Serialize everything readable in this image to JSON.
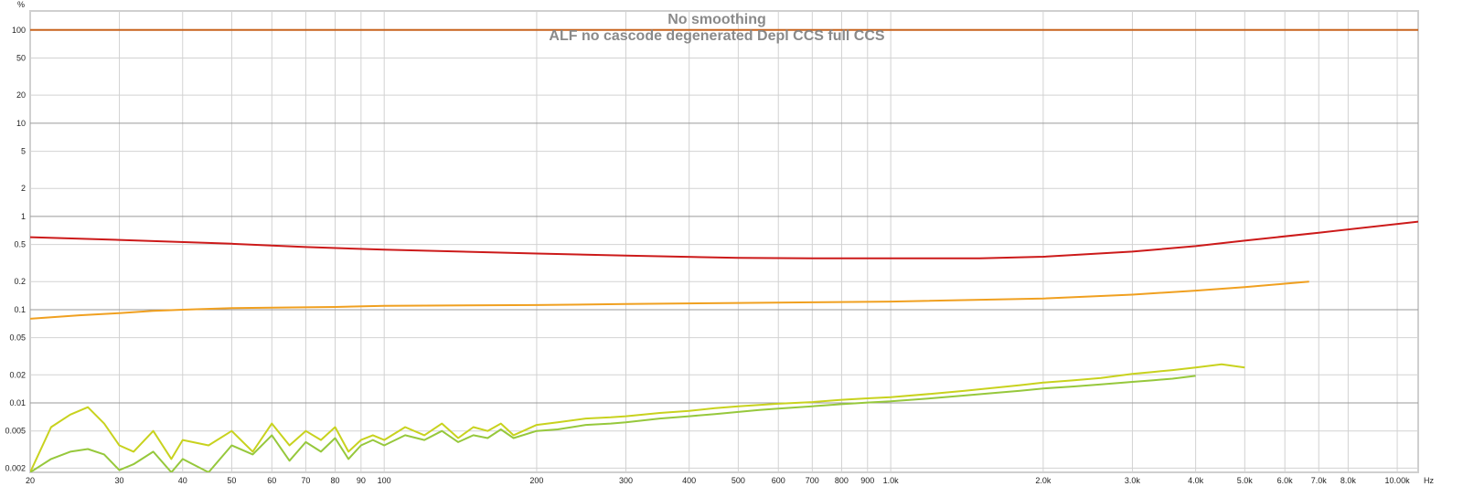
{
  "chart_data": {
    "type": "line",
    "title": "No smoothing",
    "subtitle": "ALF no cascode degenerated Depl CCS full CCS",
    "xlabel": "Hz",
    "ylabel": "%",
    "xscale": "log",
    "yscale": "log",
    "xlim": [
      20,
      11000
    ],
    "ylim": [
      0.0018,
      160
    ],
    "grid": true,
    "x_ticks": [
      {
        "value": 20,
        "label": "20"
      },
      {
        "value": 30,
        "label": "30"
      },
      {
        "value": 40,
        "label": "40"
      },
      {
        "value": 50,
        "label": "50"
      },
      {
        "value": 60,
        "label": "60"
      },
      {
        "value": 70,
        "label": "70"
      },
      {
        "value": 80,
        "label": "80"
      },
      {
        "value": 90,
        "label": "90"
      },
      {
        "value": 100,
        "label": "100"
      },
      {
        "value": 200,
        "label": "200"
      },
      {
        "value": 300,
        "label": "300"
      },
      {
        "value": 400,
        "label": "400"
      },
      {
        "value": 500,
        "label": "500"
      },
      {
        "value": 600,
        "label": "600"
      },
      {
        "value": 700,
        "label": "700"
      },
      {
        "value": 800,
        "label": "800"
      },
      {
        "value": 900,
        "label": "900"
      },
      {
        "value": 1000,
        "label": "1.0k"
      },
      {
        "value": 2000,
        "label": "2.0k"
      },
      {
        "value": 3000,
        "label": "3.0k"
      },
      {
        "value": 4000,
        "label": "4.0k"
      },
      {
        "value": 5000,
        "label": "5.0k"
      },
      {
        "value": 6000,
        "label": "6.0k"
      },
      {
        "value": 7000,
        "label": "7.0k"
      },
      {
        "value": 8000,
        "label": "8.0k"
      },
      {
        "value": 10000,
        "label": "10.00k"
      }
    ],
    "y_ticks": [
      {
        "value": 100,
        "label": "100"
      },
      {
        "value": 50,
        "label": "50"
      },
      {
        "value": 20,
        "label": "20"
      },
      {
        "value": 10,
        "label": "10"
      },
      {
        "value": 5,
        "label": "5"
      },
      {
        "value": 2,
        "label": "2"
      },
      {
        "value": 1,
        "label": "1"
      },
      {
        "value": 0.5,
        "label": "0.5"
      },
      {
        "value": 0.2,
        "label": "0.2"
      },
      {
        "value": 0.1,
        "label": "0.1"
      },
      {
        "value": 0.05,
        "label": "0.05"
      },
      {
        "value": 0.02,
        "label": "0.02"
      },
      {
        "value": 0.01,
        "label": "0.01"
      },
      {
        "value": 0.005,
        "label": "0.005"
      },
      {
        "value": 0.002,
        "label": "0.002"
      }
    ],
    "major_y": [
      100,
      10,
      1,
      0.1,
      0.01
    ],
    "series": [
      {
        "color": "#c8641e",
        "x": [
          20,
          11000
        ],
        "y": [
          100,
          100
        ]
      },
      {
        "color": "#cc1a1a",
        "x": [
          20,
          30,
          50,
          70,
          100,
          200,
          300,
          500,
          700,
          1000,
          1500,
          2000,
          3000,
          4000,
          5000,
          7000,
          11000
        ],
        "y": [
          0.6,
          0.56,
          0.51,
          0.47,
          0.44,
          0.4,
          0.38,
          0.36,
          0.355,
          0.355,
          0.355,
          0.37,
          0.42,
          0.48,
          0.55,
          0.67,
          0.88
        ]
      },
      {
        "color": "#f0a020",
        "x": [
          20,
          25,
          30,
          35,
          40,
          50,
          60,
          80,
          100,
          200,
          300,
          500,
          700,
          1000,
          2000,
          3000,
          4000,
          5000,
          6000,
          6700
        ],
        "y": [
          0.08,
          0.087,
          0.092,
          0.097,
          0.1,
          0.104,
          0.105,
          0.107,
          0.11,
          0.112,
          0.115,
          0.118,
          0.12,
          0.122,
          0.132,
          0.145,
          0.16,
          0.175,
          0.19,
          0.2
        ]
      },
      {
        "color": "#c8d21e",
        "x": [
          20,
          22,
          24,
          26,
          28,
          30,
          32,
          35,
          38,
          40,
          45,
          50,
          55,
          60,
          65,
          70,
          75,
          80,
          85,
          90,
          95,
          100,
          110,
          120,
          130,
          140,
          150,
          160,
          170,
          180,
          200,
          220,
          250,
          280,
          300,
          350,
          400,
          450,
          500,
          550,
          600,
          700,
          800,
          900,
          1000,
          1200,
          1400,
          1600,
          1800,
          2000,
          2300,
          2600,
          3000,
          3300,
          3600,
          4000,
          4500,
          5000
        ],
        "y": [
          0.0018,
          0.0055,
          0.0075,
          0.009,
          0.006,
          0.0035,
          0.003,
          0.005,
          0.0025,
          0.004,
          0.0035,
          0.005,
          0.003,
          0.006,
          0.0035,
          0.005,
          0.004,
          0.0055,
          0.003,
          0.004,
          0.0045,
          0.004,
          0.0055,
          0.0045,
          0.006,
          0.0042,
          0.0055,
          0.005,
          0.006,
          0.0045,
          0.0058,
          0.0062,
          0.0068,
          0.007,
          0.0072,
          0.0078,
          0.0082,
          0.0088,
          0.0092,
          0.0095,
          0.0098,
          0.0102,
          0.0108,
          0.0112,
          0.0115,
          0.0125,
          0.0135,
          0.0145,
          0.0155,
          0.0165,
          0.0175,
          0.0185,
          0.0205,
          0.0215,
          0.0225,
          0.024,
          0.026,
          0.024
        ]
      },
      {
        "color": "#96c83c",
        "x": [
          20,
          22,
          24,
          26,
          28,
          30,
          32,
          35,
          38,
          40,
          45,
          50,
          55,
          60,
          65,
          70,
          75,
          80,
          85,
          90,
          95,
          100,
          110,
          120,
          130,
          140,
          150,
          160,
          170,
          180,
          200,
          220,
          250,
          280,
          300,
          350,
          400,
          450,
          500,
          550,
          600,
          700,
          800,
          900,
          1000,
          1200,
          1400,
          1600,
          1800,
          2000,
          2300,
          2600,
          3000,
          3300,
          3600,
          4000
        ],
        "y": [
          0.0018,
          0.0025,
          0.003,
          0.0032,
          0.0028,
          0.0019,
          0.0022,
          0.003,
          0.0018,
          0.0025,
          0.0018,
          0.0035,
          0.0028,
          0.0045,
          0.0024,
          0.0038,
          0.003,
          0.0042,
          0.0025,
          0.0035,
          0.004,
          0.0035,
          0.0045,
          0.004,
          0.005,
          0.0038,
          0.0045,
          0.0042,
          0.0052,
          0.0042,
          0.005,
          0.0052,
          0.0058,
          0.006,
          0.0062,
          0.0068,
          0.0072,
          0.0076,
          0.008,
          0.0084,
          0.0087,
          0.0092,
          0.0097,
          0.0101,
          0.0104,
          0.0112,
          0.012,
          0.0128,
          0.0135,
          0.0143,
          0.015,
          0.0158,
          0.0168,
          0.0175,
          0.0182,
          0.0195
        ]
      }
    ]
  }
}
